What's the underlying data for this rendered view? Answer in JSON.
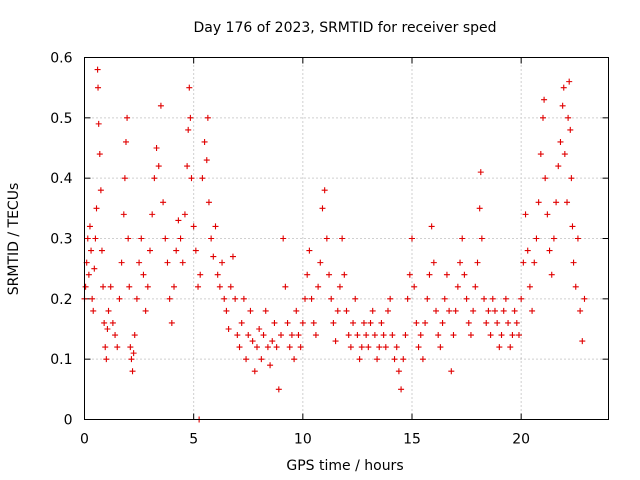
{
  "chart_data": {
    "type": "scatter",
    "title": "Day 176 of 2023, SRMTID for receiver sped",
    "xlabel": "GPS time / hours",
    "ylabel": "SRMTID / TECUs",
    "xlim": [
      0,
      24
    ],
    "ylim": [
      0,
      0.6
    ],
    "x_ticks": [
      0,
      5,
      10,
      15,
      20
    ],
    "x_tick_labels": [
      "0",
      "5",
      "10",
      "15",
      "20"
    ],
    "y_ticks": [
      0,
      0.1,
      0.2,
      0.3,
      0.4,
      0.5,
      0.6
    ],
    "y_tick_labels": [
      "0",
      "0.1",
      "0.2",
      "0.3",
      "0.4",
      "0.5",
      "0.6"
    ],
    "grid": true,
    "marker": "plus",
    "color": "#e00000",
    "series": [
      {
        "name": "SRMTID",
        "points": [
          [
            0.0,
            0.2
          ],
          [
            0.05,
            0.22
          ],
          [
            0.1,
            0.26
          ],
          [
            0.15,
            0.3
          ],
          [
            0.2,
            0.24
          ],
          [
            0.25,
            0.32
          ],
          [
            0.3,
            0.28
          ],
          [
            0.35,
            0.2
          ],
          [
            0.4,
            0.18
          ],
          [
            0.45,
            0.25
          ],
          [
            0.5,
            0.3
          ],
          [
            0.55,
            0.35
          ],
          [
            0.6,
            0.58
          ],
          [
            0.62,
            0.55
          ],
          [
            0.65,
            0.49
          ],
          [
            0.7,
            0.44
          ],
          [
            0.75,
            0.38
          ],
          [
            0.8,
            0.28
          ],
          [
            0.85,
            0.22
          ],
          [
            0.9,
            0.16
          ],
          [
            0.95,
            0.12
          ],
          [
            1.0,
            0.1
          ],
          [
            1.05,
            0.15
          ],
          [
            1.1,
            0.18
          ],
          [
            1.2,
            0.22
          ],
          [
            1.3,
            0.16
          ],
          [
            1.4,
            0.14
          ],
          [
            1.5,
            0.12
          ],
          [
            1.6,
            0.2
          ],
          [
            1.7,
            0.26
          ],
          [
            1.8,
            0.34
          ],
          [
            1.85,
            0.4
          ],
          [
            1.9,
            0.46
          ],
          [
            1.95,
            0.5
          ],
          [
            2.0,
            0.3
          ],
          [
            2.05,
            0.22
          ],
          [
            2.1,
            0.12
          ],
          [
            2.15,
            0.1
          ],
          [
            2.2,
            0.08
          ],
          [
            2.25,
            0.11
          ],
          [
            2.3,
            0.14
          ],
          [
            2.4,
            0.2
          ],
          [
            2.5,
            0.26
          ],
          [
            2.6,
            0.3
          ],
          [
            2.7,
            0.24
          ],
          [
            2.8,
            0.18
          ],
          [
            2.9,
            0.22
          ],
          [
            3.0,
            0.28
          ],
          [
            3.1,
            0.34
          ],
          [
            3.2,
            0.4
          ],
          [
            3.3,
            0.45
          ],
          [
            3.4,
            0.42
          ],
          [
            3.5,
            0.52
          ],
          [
            3.6,
            0.36
          ],
          [
            3.7,
            0.3
          ],
          [
            3.8,
            0.26
          ],
          [
            3.9,
            0.2
          ],
          [
            4.0,
            0.16
          ],
          [
            4.1,
            0.22
          ],
          [
            4.2,
            0.28
          ],
          [
            4.3,
            0.33
          ],
          [
            4.4,
            0.3
          ],
          [
            4.5,
            0.26
          ],
          [
            4.6,
            0.34
          ],
          [
            4.7,
            0.42
          ],
          [
            4.75,
            0.48
          ],
          [
            4.8,
            0.55
          ],
          [
            4.85,
            0.5
          ],
          [
            4.9,
            0.4
          ],
          [
            5.0,
            0.32
          ],
          [
            5.1,
            0.28
          ],
          [
            5.2,
            0.22
          ],
          [
            5.25,
            0.0
          ],
          [
            5.3,
            0.24
          ],
          [
            5.4,
            0.4
          ],
          [
            5.5,
            0.46
          ],
          [
            5.6,
            0.43
          ],
          [
            5.65,
            0.5
          ],
          [
            5.7,
            0.36
          ],
          [
            5.8,
            0.3
          ],
          [
            5.9,
            0.27
          ],
          [
            6.0,
            0.32
          ],
          [
            6.1,
            0.24
          ],
          [
            6.2,
            0.22
          ],
          [
            6.3,
            0.26
          ],
          [
            6.4,
            0.2
          ],
          [
            6.5,
            0.18
          ],
          [
            6.6,
            0.15
          ],
          [
            6.7,
            0.22
          ],
          [
            6.8,
            0.27
          ],
          [
            6.9,
            0.2
          ],
          [
            7.0,
            0.14
          ],
          [
            7.1,
            0.12
          ],
          [
            7.2,
            0.16
          ],
          [
            7.3,
            0.2
          ],
          [
            7.4,
            0.1
          ],
          [
            7.5,
            0.14
          ],
          [
            7.6,
            0.18
          ],
          [
            7.7,
            0.13
          ],
          [
            7.8,
            0.08
          ],
          [
            7.9,
            0.12
          ],
          [
            8.0,
            0.15
          ],
          [
            8.1,
            0.1
          ],
          [
            8.2,
            0.14
          ],
          [
            8.3,
            0.18
          ],
          [
            8.4,
            0.12
          ],
          [
            8.5,
            0.09
          ],
          [
            8.6,
            0.13
          ],
          [
            8.7,
            0.16
          ],
          [
            8.8,
            0.12
          ],
          [
            8.9,
            0.05
          ],
          [
            9.0,
            0.14
          ],
          [
            9.1,
            0.3
          ],
          [
            9.2,
            0.22
          ],
          [
            9.3,
            0.16
          ],
          [
            9.4,
            0.12
          ],
          [
            9.5,
            0.14
          ],
          [
            9.6,
            0.1
          ],
          [
            9.7,
            0.18
          ],
          [
            9.8,
            0.14
          ],
          [
            9.9,
            0.12
          ],
          [
            10.0,
            0.16
          ],
          [
            10.1,
            0.2
          ],
          [
            10.2,
            0.24
          ],
          [
            10.3,
            0.28
          ],
          [
            10.4,
            0.2
          ],
          [
            10.5,
            0.16
          ],
          [
            10.6,
            0.14
          ],
          [
            10.7,
            0.22
          ],
          [
            10.8,
            0.26
          ],
          [
            10.9,
            0.35
          ],
          [
            11.0,
            0.38
          ],
          [
            11.1,
            0.3
          ],
          [
            11.2,
            0.24
          ],
          [
            11.3,
            0.2
          ],
          [
            11.4,
            0.16
          ],
          [
            11.5,
            0.13
          ],
          [
            11.6,
            0.18
          ],
          [
            11.7,
            0.22
          ],
          [
            11.8,
            0.3
          ],
          [
            11.9,
            0.24
          ],
          [
            12.0,
            0.18
          ],
          [
            12.1,
            0.14
          ],
          [
            12.2,
            0.12
          ],
          [
            12.3,
            0.16
          ],
          [
            12.4,
            0.2
          ],
          [
            12.5,
            0.14
          ],
          [
            12.6,
            0.1
          ],
          [
            12.7,
            0.12
          ],
          [
            12.8,
            0.16
          ],
          [
            12.9,
            0.14
          ],
          [
            13.0,
            0.12
          ],
          [
            13.1,
            0.16
          ],
          [
            13.2,
            0.18
          ],
          [
            13.3,
            0.14
          ],
          [
            13.4,
            0.1
          ],
          [
            13.5,
            0.12
          ],
          [
            13.6,
            0.16
          ],
          [
            13.7,
            0.14
          ],
          [
            13.8,
            0.12
          ],
          [
            13.9,
            0.18
          ],
          [
            14.0,
            0.2
          ],
          [
            14.1,
            0.14
          ],
          [
            14.2,
            0.1
          ],
          [
            14.3,
            0.12
          ],
          [
            14.4,
            0.08
          ],
          [
            14.5,
            0.05
          ],
          [
            14.6,
            0.1
          ],
          [
            14.7,
            0.14
          ],
          [
            14.8,
            0.2
          ],
          [
            14.9,
            0.24
          ],
          [
            15.0,
            0.3
          ],
          [
            15.1,
            0.22
          ],
          [
            15.2,
            0.16
          ],
          [
            15.3,
            0.12
          ],
          [
            15.4,
            0.14
          ],
          [
            15.5,
            0.1
          ],
          [
            15.6,
            0.16
          ],
          [
            15.7,
            0.2
          ],
          [
            15.8,
            0.24
          ],
          [
            15.9,
            0.32
          ],
          [
            16.0,
            0.26
          ],
          [
            16.1,
            0.18
          ],
          [
            16.2,
            0.14
          ],
          [
            16.3,
            0.12
          ],
          [
            16.4,
            0.16
          ],
          [
            16.5,
            0.2
          ],
          [
            16.6,
            0.24
          ],
          [
            16.7,
            0.18
          ],
          [
            16.8,
            0.08
          ],
          [
            16.9,
            0.14
          ],
          [
            17.0,
            0.18
          ],
          [
            17.1,
            0.22
          ],
          [
            17.2,
            0.26
          ],
          [
            17.3,
            0.3
          ],
          [
            17.4,
            0.24
          ],
          [
            17.5,
            0.2
          ],
          [
            17.6,
            0.16
          ],
          [
            17.7,
            0.14
          ],
          [
            17.8,
            0.18
          ],
          [
            17.9,
            0.22
          ],
          [
            18.0,
            0.26
          ],
          [
            18.1,
            0.35
          ],
          [
            18.15,
            0.41
          ],
          [
            18.2,
            0.3
          ],
          [
            18.3,
            0.2
          ],
          [
            18.4,
            0.16
          ],
          [
            18.5,
            0.18
          ],
          [
            18.6,
            0.14
          ],
          [
            18.7,
            0.2
          ],
          [
            18.8,
            0.18
          ],
          [
            18.9,
            0.16
          ],
          [
            19.0,
            0.12
          ],
          [
            19.1,
            0.14
          ],
          [
            19.2,
            0.18
          ],
          [
            19.3,
            0.2
          ],
          [
            19.4,
            0.16
          ],
          [
            19.5,
            0.12
          ],
          [
            19.6,
            0.14
          ],
          [
            19.7,
            0.18
          ],
          [
            19.8,
            0.16
          ],
          [
            19.9,
            0.14
          ],
          [
            20.0,
            0.2
          ],
          [
            20.1,
            0.26
          ],
          [
            20.2,
            0.34
          ],
          [
            20.3,
            0.28
          ],
          [
            20.4,
            0.22
          ],
          [
            20.5,
            0.18
          ],
          [
            20.6,
            0.26
          ],
          [
            20.7,
            0.3
          ],
          [
            20.8,
            0.36
          ],
          [
            20.9,
            0.44
          ],
          [
            21.0,
            0.5
          ],
          [
            21.05,
            0.53
          ],
          [
            21.1,
            0.4
          ],
          [
            21.2,
            0.34
          ],
          [
            21.3,
            0.28
          ],
          [
            21.4,
            0.24
          ],
          [
            21.5,
            0.3
          ],
          [
            21.6,
            0.36
          ],
          [
            21.7,
            0.42
          ],
          [
            21.8,
            0.46
          ],
          [
            21.9,
            0.52
          ],
          [
            21.95,
            0.55
          ],
          [
            22.0,
            0.44
          ],
          [
            22.1,
            0.36
          ],
          [
            22.15,
            0.5
          ],
          [
            22.2,
            0.56
          ],
          [
            22.25,
            0.48
          ],
          [
            22.3,
            0.4
          ],
          [
            22.35,
            0.32
          ],
          [
            22.4,
            0.26
          ],
          [
            22.5,
            0.22
          ],
          [
            22.6,
            0.3
          ],
          [
            22.7,
            0.18
          ],
          [
            22.8,
            0.13
          ],
          [
            22.9,
            0.2
          ]
        ]
      }
    ]
  }
}
